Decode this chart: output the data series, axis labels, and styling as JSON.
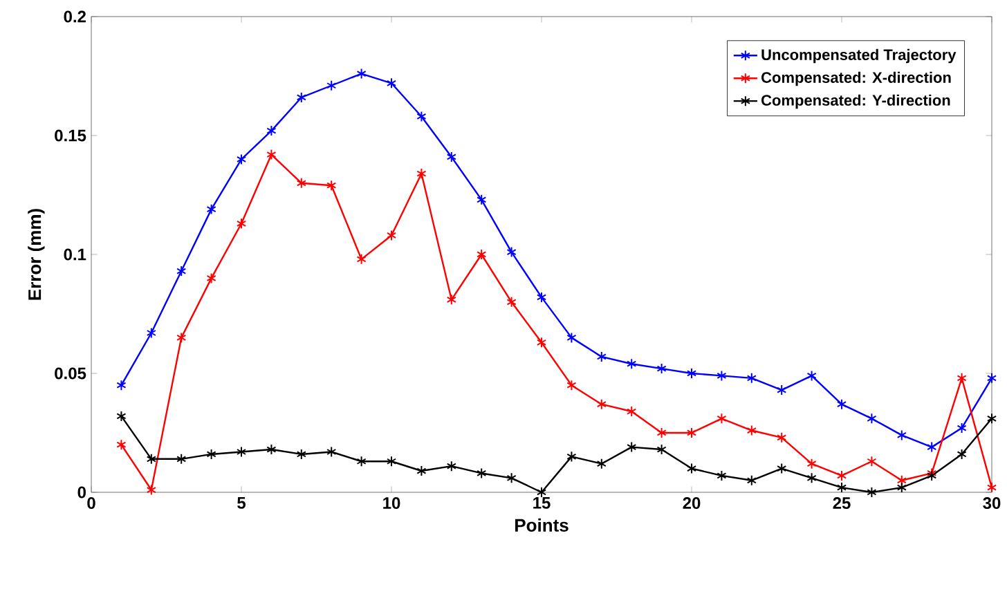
{
  "chart_data": {
    "type": "line",
    "xlabel": "Points",
    "ylabel": "Error (mm)",
    "x": [
      1,
      2,
      3,
      4,
      5,
      6,
      7,
      8,
      9,
      10,
      11,
      12,
      13,
      14,
      15,
      16,
      17,
      18,
      19,
      20,
      21,
      22,
      23,
      24,
      25,
      26,
      27,
      28,
      29,
      30
    ],
    "series": [
      {
        "name": "Uncompensated Trajectory",
        "color": "#0000ff",
        "values": [
          0.045,
          0.067,
          0.093,
          0.119,
          0.14,
          0.152,
          0.166,
          0.171,
          0.176,
          0.172,
          0.158,
          0.141,
          0.123,
          0.101,
          0.082,
          0.065,
          0.057,
          0.054,
          0.052,
          0.05,
          0.049,
          0.048,
          0.043,
          0.049,
          0.037,
          0.031,
          0.024,
          0.019,
          0.027,
          0.048
        ]
      },
      {
        "name": "Compensated: X-direction",
        "color": "#ff0000",
        "values": [
          0.02,
          0.001,
          0.065,
          0.09,
          0.113,
          0.142,
          0.13,
          0.129,
          0.098,
          0.108,
          0.134,
          0.081,
          0.1,
          0.08,
          0.063,
          0.045,
          0.037,
          0.034,
          0.025,
          0.025,
          0.031,
          0.026,
          0.023,
          0.012,
          0.007,
          0.013,
          0.005,
          0.008,
          0.048,
          0.002
        ]
      },
      {
        "name": "Compensated: Y-direction",
        "color": "#000000",
        "values": [
          0.032,
          0.014,
          0.014,
          0.016,
          0.017,
          0.018,
          0.016,
          0.017,
          0.013,
          0.013,
          0.009,
          0.011,
          0.008,
          0.006,
          0.0,
          0.015,
          0.012,
          0.019,
          0.018,
          0.01,
          0.007,
          0.005,
          0.01,
          0.006,
          0.002,
          0.0,
          0.002,
          0.007,
          0.016,
          0.031
        ]
      }
    ],
    "xlim": [
      0,
      30
    ],
    "ylim": [
      0,
      0.2
    ],
    "xticks": [
      0,
      5,
      10,
      15,
      20,
      25,
      30
    ],
    "yticks": [
      0,
      0.05,
      0.1,
      0.15,
      0.2
    ],
    "marker": "cross",
    "line_style": "solid",
    "legend": "top right",
    "grid": false
  }
}
